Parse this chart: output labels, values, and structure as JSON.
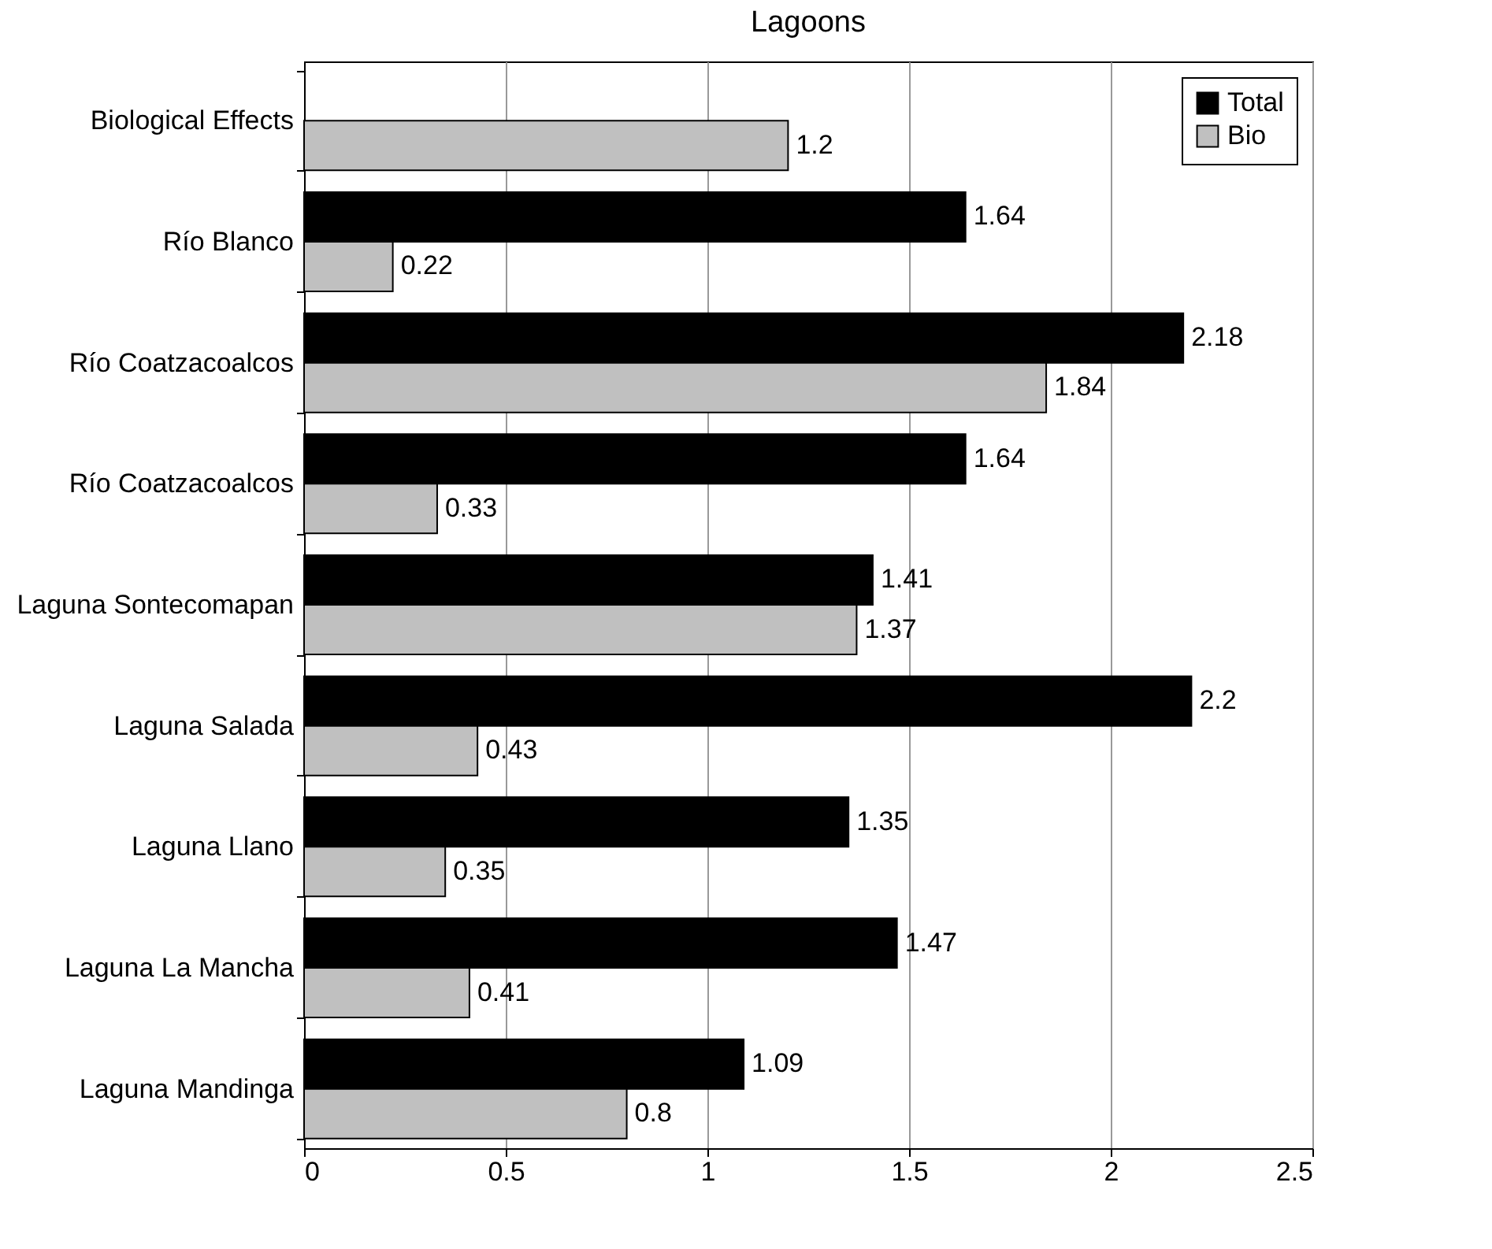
{
  "chart_data": {
    "type": "bar",
    "title": "Lagoons",
    "orientation": "horizontal",
    "categories": [
      "Biological Effects",
      "Río Blanco",
      "Río Coatzacoalcos",
      "Río Coatzacoalcos",
      "Laguna Sontecomapan",
      "Laguna Salada",
      "Laguna Llano",
      "Laguna La Mancha",
      "Laguna Mandinga"
    ],
    "series": [
      {
        "name": "Total",
        "color": "#000000",
        "values": [
          null,
          1.64,
          2.18,
          1.64,
          1.41,
          2.2,
          1.35,
          1.47,
          1.09
        ]
      },
      {
        "name": "Bio",
        "color": "#c0c0c0",
        "values": [
          1.2,
          0.22,
          1.84,
          0.33,
          1.37,
          0.43,
          0.35,
          0.41,
          0.8
        ]
      }
    ],
    "xlim": [
      0,
      2.5
    ],
    "xticks": [
      0,
      0.5,
      1,
      1.5,
      2,
      2.5
    ],
    "grid": "x",
    "legend": "top right",
    "data_labels": true
  }
}
